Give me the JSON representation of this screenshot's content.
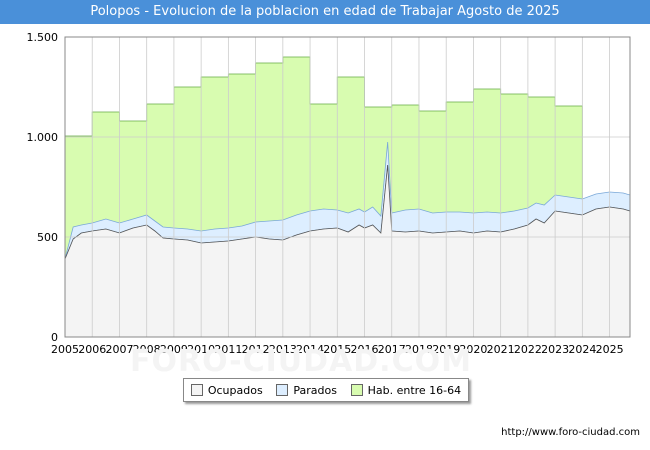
{
  "title": "Polopos - Evolucion de la poblacion en edad de Trabajar Agosto de 2025",
  "source": "http://www.foro-ciudad.com",
  "watermark": "FORO-CIUDAD.COM",
  "colors": {
    "title_bg": "#4a90d9",
    "ocupados": "#f4f4f4",
    "parados": "#ddeeff",
    "hab": "#d8fcb0"
  },
  "chart_data": {
    "type": "area",
    "title": "Polopos - Evolucion de la poblacion en edad de Trabajar Agosto de 2025",
    "xlim": [
      2005,
      2025.75
    ],
    "ylim": [
      0,
      1500
    ],
    "yticks": [
      0,
      500,
      1000,
      1500
    ],
    "ytick_labels": [
      "0",
      "500",
      "1.000",
      "1.500"
    ],
    "xticks": [
      2005,
      2006,
      2007,
      2008,
      2009,
      2010,
      2011,
      2012,
      2013,
      2014,
      2015,
      2016,
      2017,
      2018,
      2019,
      2020,
      2021,
      2022,
      2023,
      2024,
      2025
    ],
    "grid": true,
    "legend_position": "bottom-center",
    "hab_years": [
      2005,
      2006,
      2007,
      2008,
      2009,
      2010,
      2011,
      2012,
      2013,
      2014,
      2015,
      2016,
      2017,
      2018,
      2019,
      2020,
      2021,
      2022,
      2023
    ],
    "hab_values": [
      1005,
      1125,
      1080,
      1165,
      1250,
      1300,
      1315,
      1370,
      1400,
      1165,
      1300,
      1150,
      1160,
      1130,
      1175,
      1240,
      1215,
      1200,
      1155
    ],
    "series": [
      {
        "name": "Ocupados",
        "x": [
          2005,
          2005.3,
          2005.6,
          2006,
          2006.5,
          2007,
          2007.5,
          2008,
          2008.3,
          2008.6,
          2009,
          2009.5,
          2010,
          2010.5,
          2011,
          2011.5,
          2012,
          2012.5,
          2013,
          2013.5,
          2014,
          2014.5,
          2015,
          2015.4,
          2015.8,
          2016,
          2016.3,
          2016.6,
          2016.85,
          2017,
          2017.5,
          2018,
          2018.5,
          2019,
          2019.5,
          2020,
          2020.5,
          2021,
          2021.5,
          2022,
          2022.3,
          2022.6,
          2023,
          2023.5,
          2024,
          2024.5,
          2025,
          2025.5,
          2025.75
        ],
        "values": [
          390,
          490,
          520,
          530,
          540,
          520,
          545,
          560,
          530,
          495,
          490,
          485,
          470,
          475,
          480,
          490,
          500,
          490,
          485,
          510,
          530,
          540,
          545,
          525,
          560,
          545,
          560,
          520,
          860,
          530,
          525,
          530,
          520,
          525,
          530,
          520,
          530,
          525,
          540,
          560,
          590,
          570,
          630,
          620,
          610,
          640,
          650,
          640,
          630
        ]
      },
      {
        "name": "Parados",
        "x": [
          2005,
          2005.3,
          2005.6,
          2006,
          2006.5,
          2007,
          2007.5,
          2008,
          2008.3,
          2008.6,
          2009,
          2009.5,
          2010,
          2010.5,
          2011,
          2011.5,
          2012,
          2012.5,
          2013,
          2013.5,
          2014,
          2014.5,
          2015,
          2015.4,
          2015.8,
          2016,
          2016.3,
          2016.6,
          2016.85,
          2017,
          2017.5,
          2018,
          2018.5,
          2019,
          2019.5,
          2020,
          2020.5,
          2021,
          2021.5,
          2022,
          2022.3,
          2022.6,
          2023,
          2023.5,
          2024,
          2024.5,
          2025,
          2025.5,
          2025.75
        ],
        "values": [
          0,
          60,
          40,
          40,
          50,
          50,
          45,
          50,
          50,
          55,
          55,
          55,
          60,
          65,
          65,
          65,
          75,
          90,
          100,
          100,
          100,
          100,
          90,
          95,
          80,
          80,
          90,
          85,
          115,
          90,
          110,
          110,
          100,
          100,
          95,
          100,
          95,
          95,
          90,
          85,
          80,
          90,
          80,
          80,
          80,
          75,
          75,
          80,
          80
        ]
      }
    ]
  }
}
